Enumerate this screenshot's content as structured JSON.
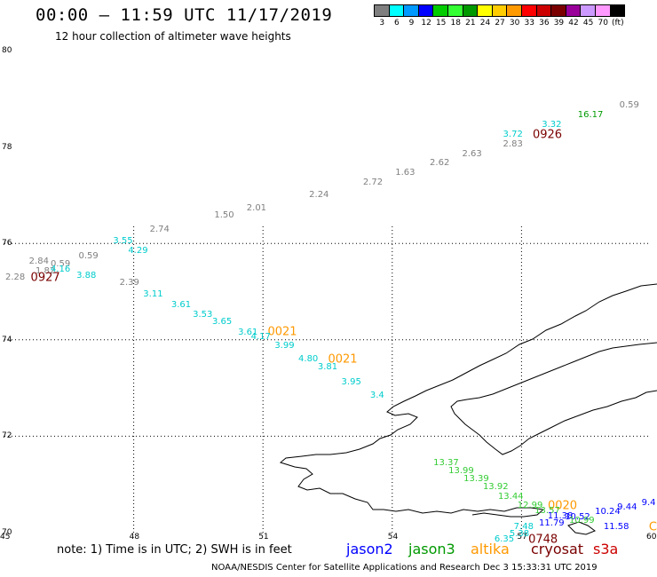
{
  "header": {
    "title": "00:00 – 11:59 UTC 11/17/2019",
    "subtitle": "12 hour collection of altimeter wave heights"
  },
  "colorbar": {
    "colors": [
      "#7f7f7f",
      "#00ffff",
      "#0099ff",
      "#0000ff",
      "#00cc00",
      "#33ff33",
      "#009900",
      "#ffff00",
      "#ffcc00",
      "#ff9900",
      "#ff0000",
      "#cc0000",
      "#7a0000",
      "#990099",
      "#cc99ff",
      "#ff99ff",
      "#000000"
    ],
    "labels": [
      "3",
      "6",
      "9",
      "12",
      "15",
      "18",
      "21",
      "24",
      "27",
      "30",
      "33",
      "36",
      "39",
      "42",
      "45",
      "70",
      "(ft)"
    ]
  },
  "axes": {
    "lat_labels": [
      {
        "lat": 80,
        "text": "80"
      },
      {
        "lat": 78,
        "text": "78"
      },
      {
        "lat": 76,
        "text": "76"
      },
      {
        "lat": 74,
        "text": "74"
      },
      {
        "lat": 72,
        "text": "72"
      },
      {
        "lat": 70,
        "text": "70"
      }
    ],
    "lon_labels": [
      {
        "lon": 45,
        "text": "45"
      },
      {
        "lon": 48,
        "text": "48"
      },
      {
        "lon": 51,
        "text": "51"
      },
      {
        "lon": 54,
        "text": "54"
      },
      {
        "lon": 57,
        "text": "57"
      },
      {
        "lon": 60,
        "text": "60"
      }
    ],
    "lon_range": [
      45,
      60
    ],
    "lat_range": [
      70,
      80
    ]
  },
  "tracks": [
    {
      "v": "0.59",
      "c": "#7f7f7f",
      "lon": 59.5,
      "lat": 78.85
    },
    {
      "v": "16.17",
      "c": "#009900",
      "lon": 58.6,
      "lat": 78.65
    },
    {
      "v": "3.32",
      "c": "#00cccc",
      "lon": 57.7,
      "lat": 78.45
    },
    {
      "v": "0926",
      "c": "#7a0000",
      "lon": 57.6,
      "lat": 78.25,
      "pass": true
    },
    {
      "v": "3.72",
      "c": "#00cccc",
      "lon": 56.8,
      "lat": 78.25
    },
    {
      "v": "2.83",
      "c": "#7f7f7f",
      "lon": 56.8,
      "lat": 78.05
    },
    {
      "v": "2.63",
      "c": "#7f7f7f",
      "lon": 55.85,
      "lat": 77.85
    },
    {
      "v": "2.62",
      "c": "#7f7f7f",
      "lon": 55.1,
      "lat": 77.66
    },
    {
      "v": "1.63",
      "c": "#7f7f7f",
      "lon": 54.3,
      "lat": 77.46
    },
    {
      "v": "2.72",
      "c": "#7f7f7f",
      "lon": 53.55,
      "lat": 77.26
    },
    {
      "v": "2.24",
      "c": "#7f7f7f",
      "lon": 52.3,
      "lat": 77.0
    },
    {
      "v": "2.01",
      "c": "#7f7f7f",
      "lon": 50.85,
      "lat": 76.72
    },
    {
      "v": "1.50",
      "c": "#7f7f7f",
      "lon": 50.1,
      "lat": 76.58
    },
    {
      "v": "2.74",
      "c": "#7f7f7f",
      "lon": 48.6,
      "lat": 76.28
    },
    {
      "v": "3.55",
      "c": "#00cccc",
      "lon": 47.75,
      "lat": 76.04
    },
    {
      "v": "4.29",
      "c": "#00cccc",
      "lon": 48.1,
      "lat": 75.83
    },
    {
      "v": "0.59",
      "c": "#7f7f7f",
      "lon": 46.95,
      "lat": 75.73
    },
    {
      "v": "2.84",
      "c": "#7f7f7f",
      "lon": 45.8,
      "lat": 75.62
    },
    {
      "v": "0.59",
      "c": "#7f7f7f",
      "lon": 46.3,
      "lat": 75.56
    },
    {
      "v": "1.82",
      "c": "#7f7f7f",
      "lon": 45.95,
      "lat": 75.42
    },
    {
      "v": "4.16",
      "c": "#00cccc",
      "lon": 46.3,
      "lat": 75.46
    },
    {
      "v": "3.88",
      "c": "#00cccc",
      "lon": 46.9,
      "lat": 75.32
    },
    {
      "v": "2.28",
      "c": "#7f7f7f",
      "lon": 45.25,
      "lat": 75.29
    },
    {
      "v": "0927",
      "c": "#7a0000",
      "lon": 45.95,
      "lat": 75.29,
      "pass": true
    },
    {
      "v": "2.39",
      "c": "#7f7f7f",
      "lon": 47.9,
      "lat": 75.17
    },
    {
      "v": "3.11",
      "c": "#00cccc",
      "lon": 48.45,
      "lat": 74.93
    },
    {
      "v": "3.61",
      "c": "#00cccc",
      "lon": 49.1,
      "lat": 74.71
    },
    {
      "v": "3.53",
      "c": "#00cccc",
      "lon": 49.6,
      "lat": 74.52
    },
    {
      "v": "3.65",
      "c": "#00cccc",
      "lon": 50.05,
      "lat": 74.36
    },
    {
      "v": "3.61",
      "c": "#00cccc",
      "lon": 50.65,
      "lat": 74.14
    },
    {
      "v": "0021",
      "c": "#ff9900",
      "lon": 51.45,
      "lat": 74.16,
      "pass": true
    },
    {
      "v": "4.17",
      "c": "#00cccc",
      "lon": 50.95,
      "lat": 74.05
    },
    {
      "v": "3.99",
      "c": "#00cccc",
      "lon": 51.5,
      "lat": 73.86
    },
    {
      "v": "4.80",
      "c": "#00cccc",
      "lon": 52.05,
      "lat": 73.6
    },
    {
      "v": "0021",
      "c": "#ff9900",
      "lon": 52.85,
      "lat": 73.6,
      "pass": true
    },
    {
      "v": "3.81",
      "c": "#00cccc",
      "lon": 52.5,
      "lat": 73.42
    },
    {
      "v": "3.95",
      "c": "#00cccc",
      "lon": 53.05,
      "lat": 73.12
    },
    {
      "v": "3.4",
      "c": "#00cccc",
      "lon": 53.65,
      "lat": 72.84
    },
    {
      "v": "13.37",
      "c": "#33cc33",
      "lon": 55.25,
      "lat": 71.44
    },
    {
      "v": "13.99",
      "c": "#33cc33",
      "lon": 55.6,
      "lat": 71.27
    },
    {
      "v": "13.39",
      "c": "#33cc33",
      "lon": 55.95,
      "lat": 71.11
    },
    {
      "v": "13.92",
      "c": "#33cc33",
      "lon": 56.4,
      "lat": 70.94
    },
    {
      "v": "13.44",
      "c": "#33cc33",
      "lon": 56.75,
      "lat": 70.74
    },
    {
      "v": "12.99",
      "c": "#33cc33",
      "lon": 57.2,
      "lat": 70.56
    },
    {
      "v": "0020",
      "c": "#ff9900",
      "lon": 57.95,
      "lat": 70.56,
      "pass": true
    },
    {
      "v": "9.4",
      "c": "#0000ff",
      "lon": 59.95,
      "lat": 70.61
    },
    {
      "v": "9.44",
      "c": "#0000ff",
      "lon": 59.45,
      "lat": 70.52
    },
    {
      "v": "13.57",
      "c": "#33cc33",
      "lon": 57.6,
      "lat": 70.44
    },
    {
      "v": "10.24",
      "c": "#0000ff",
      "lon": 59.0,
      "lat": 70.42
    },
    {
      "v": "11.38",
      "c": "#0000ff",
      "lon": 57.9,
      "lat": 70.34
    },
    {
      "v": "10.52",
      "c": "#0000ff",
      "lon": 58.3,
      "lat": 70.31
    },
    {
      "v": "10.99",
      "c": "#33cc33",
      "lon": 58.4,
      "lat": 70.24
    },
    {
      "v": "11.79",
      "c": "#0000ff",
      "lon": 57.7,
      "lat": 70.19
    },
    {
      "v": "7.48",
      "c": "#00cccc",
      "lon": 57.05,
      "lat": 70.11
    },
    {
      "v": "11.58",
      "c": "#0000ff",
      "lon": 59.2,
      "lat": 70.11
    },
    {
      "v": "C",
      "c": "#ff9900",
      "lon": 60.05,
      "lat": 70.11,
      "pass": true
    },
    {
      "v": "5.38",
      "c": "#00cccc",
      "lon": 56.95,
      "lat": 69.97
    },
    {
      "v": "6.35",
      "c": "#00cccc",
      "lon": 56.6,
      "lat": 69.86
    },
    {
      "v": "0748",
      "c": "#7a0000",
      "lon": 57.5,
      "lat": 69.86,
      "pass": true
    }
  ],
  "footer": {
    "note": "note: 1) Time is in UTC; 2) SWH is in feet",
    "satellites": [
      {
        "name": "jason2",
        "color": "#0000ff"
      },
      {
        "name": "jason3",
        "color": "#009900"
      },
      {
        "name": "altika",
        "color": "#ff9900"
      },
      {
        "name": "cryosat",
        "color": "#7a0000"
      },
      {
        "name": "s3a",
        "color": "#cc0000"
      }
    ],
    "credit": "NOAA/NESDIS Center for Satellite Applications and Research    Dec  3 15:33:31 UTC 2019"
  }
}
